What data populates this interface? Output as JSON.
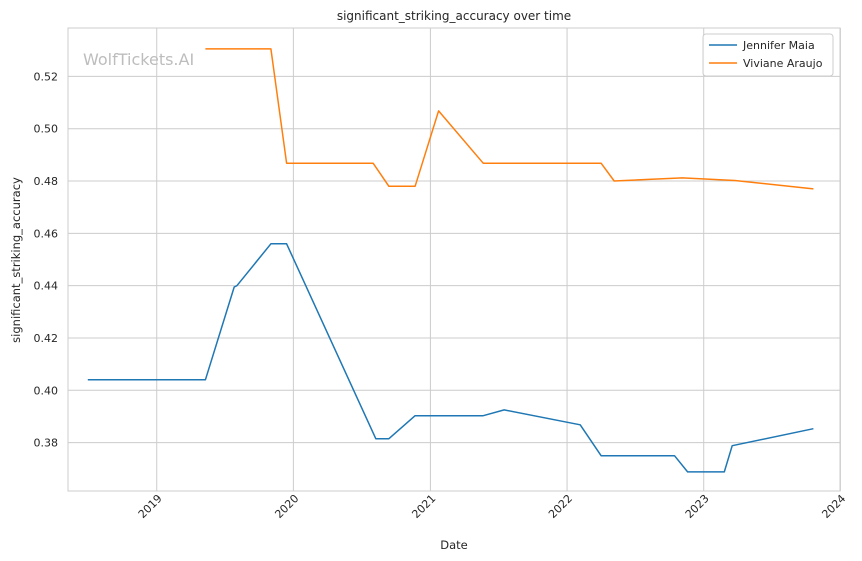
{
  "chart_data": {
    "type": "line",
    "title": "significant_striking_accuracy over time",
    "xlabel": "Date",
    "ylabel": "significant_striking_accuracy",
    "watermark": "WolfTickets.AI",
    "x_ticks": [
      "2019",
      "2020",
      "2021",
      "2022",
      "2023",
      "2024"
    ],
    "y_ticks": [
      "0.38",
      "0.40",
      "0.42",
      "0.44",
      "0.46",
      "0.48",
      "0.50",
      "0.52"
    ],
    "xlim": [
      "2018-05-09",
      "2023-12-31"
    ],
    "ylim": [
      0.3615,
      0.5385
    ],
    "grid": true,
    "legend_position": "top-right",
    "series": [
      {
        "name": "Jennifer Maia",
        "color": "#1f77b4",
        "points": [
          [
            "2018-07-01",
            0.404
          ],
          [
            "2019-05-11",
            0.404
          ],
          [
            "2019-07-27",
            0.4395
          ],
          [
            "2019-08-03",
            0.44
          ],
          [
            "2019-11-02",
            0.456
          ],
          [
            "2019-12-14",
            0.456
          ],
          [
            "2020-08-08",
            0.3815
          ],
          [
            "2020-09-12",
            0.3815
          ],
          [
            "2020-11-21",
            0.3903
          ],
          [
            "2021-05-22",
            0.3903
          ],
          [
            "2021-07-17",
            0.3925
          ],
          [
            "2022-02-05",
            0.3868
          ],
          [
            "2022-04-02",
            0.375
          ],
          [
            "2022-10-15",
            0.375
          ],
          [
            "2022-11-19",
            0.3688
          ],
          [
            "2023-02-25",
            0.3688
          ],
          [
            "2023-03-18",
            0.3788
          ],
          [
            "2023-10-21",
            0.3853
          ]
        ]
      },
      {
        "name": "Viviane Araujo",
        "color": "#ff7f0e",
        "points": [
          [
            "2019-05-11",
            0.5305
          ],
          [
            "2019-11-02",
            0.5305
          ],
          [
            "2019-12-14",
            0.4868
          ],
          [
            "2020-08-01",
            0.4868
          ],
          [
            "2020-09-12",
            0.478
          ],
          [
            "2020-11-21",
            0.478
          ],
          [
            "2021-01-23",
            0.5068
          ],
          [
            "2021-05-22",
            0.4868
          ],
          [
            "2022-04-02",
            0.4868
          ],
          [
            "2022-05-07",
            0.48
          ],
          [
            "2022-11-05",
            0.4812
          ],
          [
            "2023-03-25",
            0.4802
          ],
          [
            "2023-10-21",
            0.477
          ]
        ]
      }
    ]
  }
}
